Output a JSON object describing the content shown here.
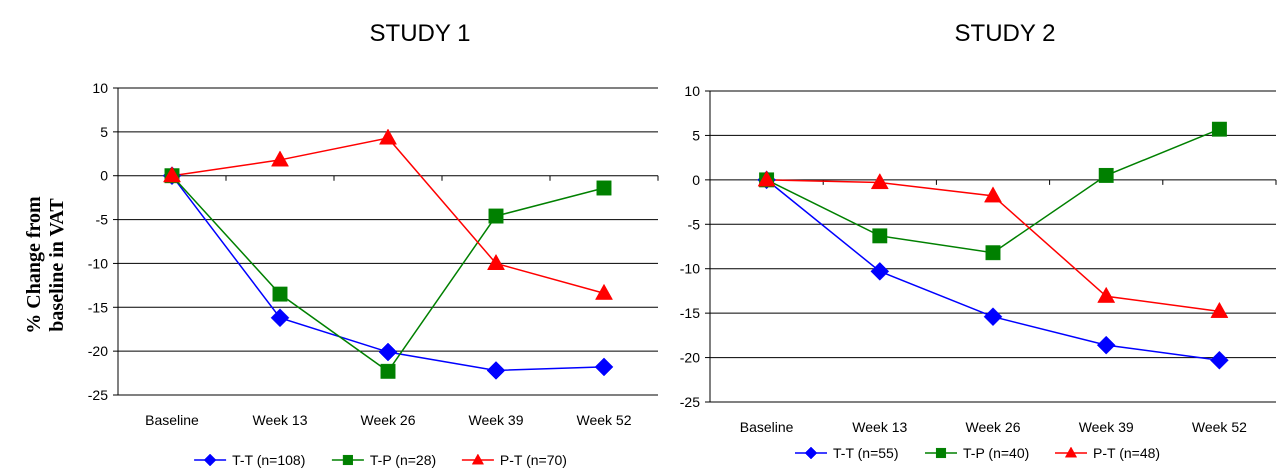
{
  "ylabel_lines": [
    "% Change from",
    "baseline in VAT"
  ],
  "chart_data": [
    {
      "type": "line",
      "title": "STUDY 1",
      "ylabel": "% Change from baseline in VAT",
      "categories": [
        "Baseline",
        "Week 13",
        "Week 26",
        "Week 39",
        "Week 52"
      ],
      "ylim": [
        -25,
        10
      ],
      "yticks": [
        10,
        5,
        0,
        -5,
        -10,
        -15,
        -20,
        -25
      ],
      "ytick_labels": [
        "10",
        "5",
        "0",
        "-5",
        "-10",
        "-15",
        "-20",
        "-25"
      ],
      "grid": true,
      "legend_position": "bottom",
      "series": [
        {
          "name": "T-T (n=108)",
          "color": "#0000ff",
          "marker": "diamond",
          "values": [
            0,
            -16.2,
            -20.1,
            -22.2,
            -21.8
          ]
        },
        {
          "name": "T-P (n=28)",
          "color": "#008000",
          "marker": "square",
          "values": [
            0,
            -13.5,
            -22.3,
            -4.6,
            -1.4
          ]
        },
        {
          "name": "P-T (n=70)",
          "color": "#ff0000",
          "marker": "triangle",
          "values": [
            0,
            1.8,
            4.3,
            -10.0,
            -13.4
          ]
        }
      ]
    },
    {
      "type": "line",
      "title": "STUDY 2",
      "categories": [
        "Baseline",
        "Week 13",
        "Week 26",
        "Week 39",
        "Week 52"
      ],
      "ylim": [
        -25,
        10
      ],
      "yticks": [
        10,
        5,
        0,
        -5,
        -10,
        -15,
        -20,
        -25
      ],
      "ytick_labels": [
        "10",
        "5",
        "0",
        "-5",
        "-10",
        "-15",
        "-20",
        "-25"
      ],
      "grid": true,
      "legend_position": "bottom",
      "series": [
        {
          "name": "T-T (n=55)",
          "color": "#0000ff",
          "marker": "diamond",
          "values": [
            0,
            -10.3,
            -15.4,
            -18.6,
            -20.3
          ]
        },
        {
          "name": "T-P (n=40)",
          "color": "#008000",
          "marker": "square",
          "values": [
            0,
            -6.3,
            -8.2,
            0.5,
            5.7
          ]
        },
        {
          "name": "P-T (n=48)",
          "color": "#ff0000",
          "marker": "triangle",
          "values": [
            0,
            -0.3,
            -1.8,
            -13.1,
            -14.8
          ]
        }
      ]
    }
  ]
}
